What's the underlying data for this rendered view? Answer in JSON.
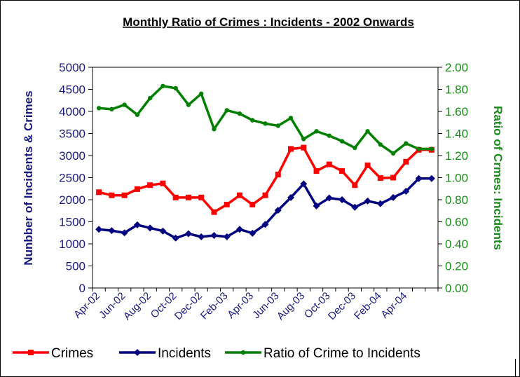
{
  "chart_data": {
    "type": "line",
    "title": "Monthly Ratio of Crimes : Incidents - 2002 Onwards",
    "ylabel": "Nunbber of Incidents & Crimes",
    "y2label": "Ratio of Crmes: Incidents",
    "ylim": [
      0,
      5000
    ],
    "y2lim": [
      0,
      2
    ],
    "yticks": [
      "0",
      "500",
      "1000",
      "1500",
      "2000",
      "2500",
      "3000",
      "3500",
      "4000",
      "4500",
      "5000"
    ],
    "y2ticks": [
      "0.00",
      "0.20",
      "0.40",
      "0.60",
      "0.80",
      "1.00",
      "1.20",
      "1.40",
      "1.60",
      "1.80",
      "2.00"
    ],
    "categories": [
      "Apr-02",
      "May-02",
      "Jun-02",
      "Jul-02",
      "Aug-02",
      "Sep-02",
      "Oct-02",
      "Nov-02",
      "Dec-02",
      "Jan-03",
      "Feb-03",
      "Mar-03",
      "Apr-03",
      "May-03",
      "Jun-03",
      "Jul-03",
      "Aug-03",
      "Sep-03",
      "Oct-03",
      "Nov-03",
      "Dec-03",
      "Jan-04",
      "Feb-04",
      "Mar-04",
      "Apr-04",
      "May-04",
      "Jun-04"
    ],
    "xticklabels": [
      "Apr-02",
      "Jun-02",
      "Aug-02",
      "Oct-02",
      "Dec-02",
      "Feb-03",
      "Apr-03",
      "Jun-03",
      "Aug-03",
      "Oct-03",
      "Dec-03",
      "Feb-04",
      "Apr-04"
    ],
    "legend_position": "bottom",
    "grid": false,
    "series": [
      {
        "name": "Crimes",
        "axis": "left",
        "color": "#ff0000",
        "marker": "square",
        "values": [
          2170,
          2100,
          2100,
          2240,
          2330,
          2370,
          2050,
          2050,
          2050,
          1720,
          1890,
          2100,
          1890,
          2100,
          2570,
          3150,
          3180,
          2650,
          2800,
          2650,
          2330,
          2780,
          2490,
          2500,
          2860,
          3130,
          3130
        ]
      },
      {
        "name": "Incidents",
        "axis": "left",
        "color": "#000080",
        "marker": "diamond",
        "values": [
          1330,
          1300,
          1250,
          1430,
          1360,
          1290,
          1130,
          1230,
          1160,
          1190,
          1160,
          1330,
          1240,
          1440,
          1760,
          2050,
          2360,
          1860,
          2040,
          2000,
          1830,
          1970,
          1910,
          2050,
          2190,
          2480,
          2480
        ]
      },
      {
        "name": "Ratio of Crime to Incidents",
        "axis": "right",
        "color": "#008000",
        "marker": "circle",
        "values": [
          1.63,
          1.62,
          1.66,
          1.57,
          1.72,
          1.83,
          1.81,
          1.66,
          1.76,
          1.44,
          1.61,
          1.58,
          1.52,
          1.49,
          1.47,
          1.54,
          1.35,
          1.42,
          1.38,
          1.33,
          1.27,
          1.42,
          1.3,
          1.22,
          1.31,
          1.26,
          1.26
        ]
      }
    ]
  }
}
